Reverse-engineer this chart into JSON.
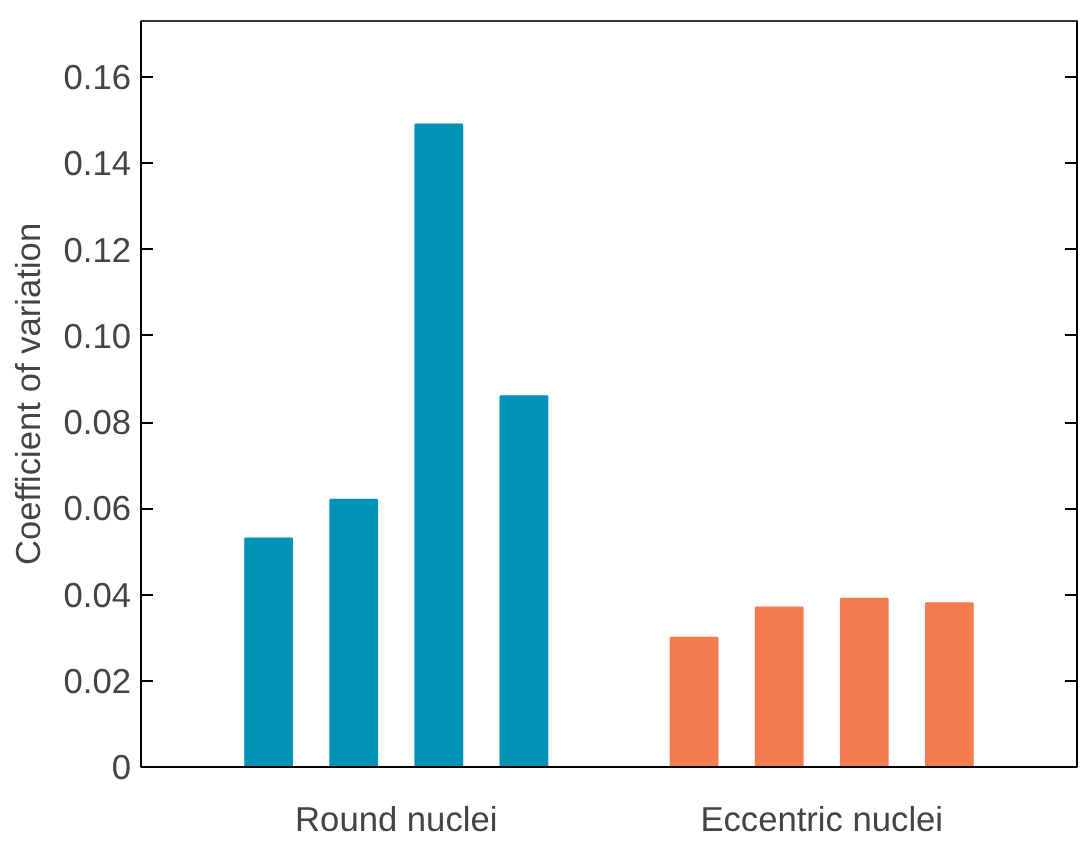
{
  "chart_data": {
    "type": "bar",
    "ylabel": "Coefficient of variation",
    "categories": [
      null,
      null,
      null,
      null,
      null,
      null,
      null,
      null,
      null,
      null,
      null
    ],
    "values": [
      null,
      0.053,
      0.062,
      0.149,
      0.086,
      null,
      0.03,
      0.037,
      0.039,
      0.038,
      null
    ],
    "colors": [
      "#0093b8",
      "#0093b8",
      "#0093b8",
      "#0093b8",
      "#0093b8",
      "#0093b8",
      "#f47b4f",
      "#f47b4f",
      "#f47b4f",
      "#f47b4f",
      "#f47b4f"
    ],
    "annotations": [
      "Round nuclei",
      "Eccentric nuclei"
    ],
    "ylim": [
      0,
      0.173
    ],
    "yticks": [
      0,
      0.02,
      0.04,
      0.06,
      0.08,
      {
        "value": 0.1,
        "label": "0.10"
      },
      0.12,
      0.14,
      0.16
    ],
    "grid": false
  }
}
